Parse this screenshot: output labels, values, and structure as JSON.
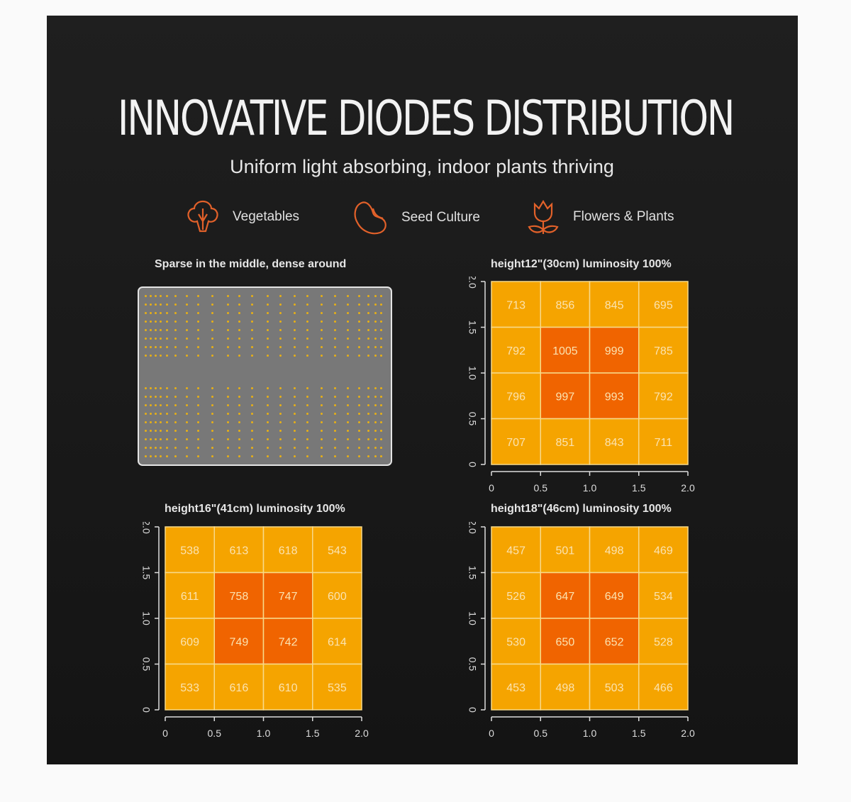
{
  "header": {
    "title": "INNOVATIVE DIODES DISTRIBUTION",
    "subtitle": "Uniform light absorbing, indoor plants thriving"
  },
  "categories": [
    {
      "label": "Vegetables",
      "icon": "vegetables-icon"
    },
    {
      "label": "Seed Culture",
      "icon": "seed-icon"
    },
    {
      "label": "Flowers & Plants",
      "icon": "flower-icon"
    }
  ],
  "led_panel": {
    "title": "Sparse in the middle, dense around",
    "dot_color": "#e8b016",
    "panel_color": "#787878"
  },
  "colors": {
    "high": "#f06400",
    "normal": "#f5a400",
    "accent": "#e2612a"
  },
  "chart_data": [
    {
      "type": "heatmap",
      "title": "height12\"(30cm)  luminosity 100%",
      "x_ticks": [
        "0",
        "0.5",
        "1.0",
        "1.5",
        "2.0"
      ],
      "y_ticks": [
        "0",
        "0.5",
        "1.0",
        "1.5",
        "2.0"
      ],
      "xlim": [
        0,
        2
      ],
      "ylim": [
        0,
        2
      ],
      "rows_top_to_bottom": [
        [
          713,
          856,
          845,
          695
        ],
        [
          792,
          1005,
          999,
          785
        ],
        [
          796,
          997,
          993,
          792
        ],
        [
          707,
          851,
          843,
          711
        ]
      ]
    },
    {
      "type": "heatmap",
      "title": "height16\"(41cm)  luminosity 100%",
      "x_ticks": [
        "0",
        "0.5",
        "1.0",
        "1.5",
        "2.0"
      ],
      "y_ticks": [
        "0",
        "0.5",
        "1.0",
        "1.5",
        "2.0"
      ],
      "xlim": [
        0,
        2
      ],
      "ylim": [
        0,
        2
      ],
      "rows_top_to_bottom": [
        [
          538,
          613,
          618,
          543
        ],
        [
          611,
          758,
          747,
          600
        ],
        [
          609,
          749,
          742,
          614
        ],
        [
          533,
          616,
          610,
          535
        ]
      ]
    },
    {
      "type": "heatmap",
      "title": "height18\"(46cm)  luminosity 100%",
      "x_ticks": [
        "0",
        "0.5",
        "1.0",
        "1.5",
        "2.0"
      ],
      "y_ticks": [
        "0",
        "0.5",
        "1.0",
        "1.5",
        "2.0"
      ],
      "xlim": [
        0,
        2
      ],
      "ylim": [
        0,
        2
      ],
      "rows_top_to_bottom": [
        [
          457,
          501,
          498,
          469
        ],
        [
          526,
          647,
          649,
          534
        ],
        [
          530,
          650,
          652,
          528
        ],
        [
          453,
          498,
          503,
          466
        ]
      ]
    }
  ]
}
